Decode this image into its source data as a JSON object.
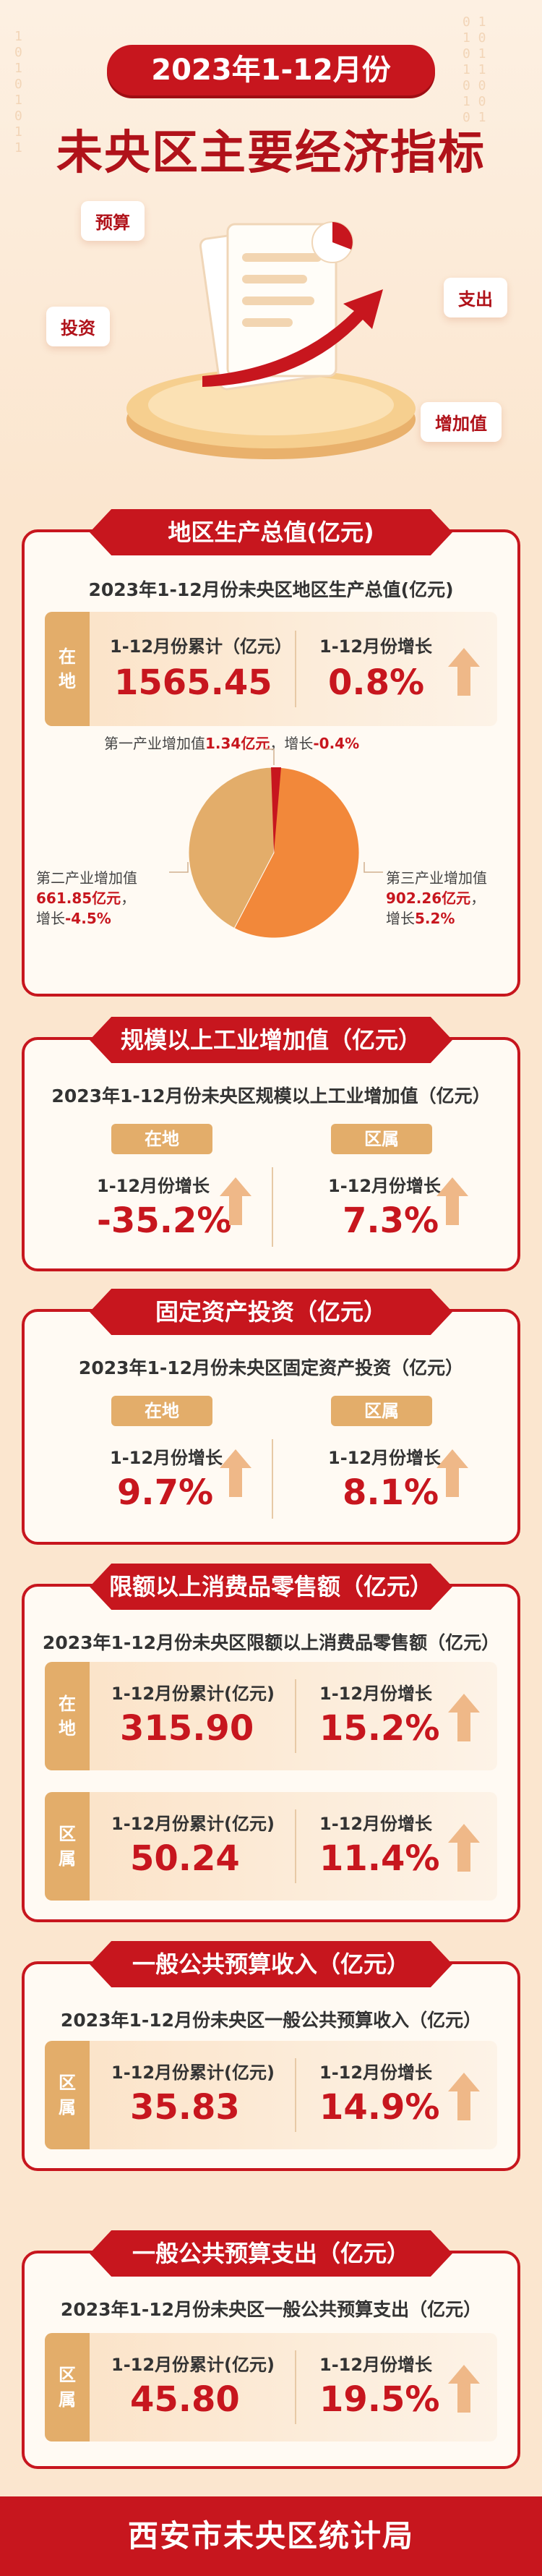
{
  "header": {
    "subtitle": "2023年1-12月份",
    "title": "未央区主要经济指标",
    "tags": {
      "budget": "预算",
      "invest": "投资",
      "expense": "支出",
      "added": "增加值"
    }
  },
  "gdp": {
    "title": "地区生产总值(亿元)",
    "subtitle": "2023年1-12月份未央区地区生产总值(亿元)",
    "side": [
      "在",
      "地"
    ],
    "cum_label": "1-12月份累计（亿元）",
    "cum_value": "1565.45",
    "growth_label": "1-12月份增长",
    "growth_value": "0.8%",
    "primary": {
      "label": "第一产业增加值",
      "value": "1.34亿元",
      "growth_label": "增长",
      "growth": "-0.4%"
    },
    "secondary": {
      "label": "第二产业增加值",
      "value": "661.85亿元",
      "growth_label": "增长",
      "growth": "-4.5%"
    },
    "tertiary": {
      "label": "第三产业增加值",
      "value": "902.26亿元",
      "growth_label": "增长",
      "growth": "5.2%"
    }
  },
  "chart_data": {
    "type": "pie",
    "categories": [
      "第一产业增加值",
      "第二产业增加值",
      "第三产业增加值"
    ],
    "values": [
      1.34,
      661.85,
      902.26
    ],
    "colors": [
      "#c7161e",
      "#e3ad6a",
      "#f2883a"
    ]
  },
  "industry": {
    "title": "规模以上工业增加值（亿元）",
    "subtitle": "2023年1-12月份未央区规模以上工业增加值（亿元）",
    "left_tag": "在地",
    "right_tag": "区属",
    "left_label": "1-12月份增长",
    "left_value": "-35.2%",
    "right_label": "1-12月份增长",
    "right_value": "7.3%"
  },
  "fixed": {
    "title": "固定资产投资（亿元）",
    "subtitle": "2023年1-12月份未央区固定资产投资（亿元）",
    "left_tag": "在地",
    "right_tag": "区属",
    "left_label": "1-12月份增长",
    "left_value": "9.7%",
    "right_label": "1-12月份增长",
    "right_value": "8.1%"
  },
  "retail": {
    "title": "限额以上消费品零售额（亿元）",
    "subtitle": "2023年1-12月份未央区限额以上消费品零售额（亿元）",
    "row1": {
      "side": [
        "在",
        "地"
      ],
      "cum_label": "1-12月份累计(亿元)",
      "cum_value": "315.90",
      "growth_label": "1-12月份增长",
      "growth_value": "15.2%"
    },
    "row2": {
      "side": [
        "区",
        "属"
      ],
      "cum_label": "1-12月份累计(亿元)",
      "cum_value": "50.24",
      "growth_label": "1-12月份增长",
      "growth_value": "11.4%"
    }
  },
  "revenue": {
    "title": "一般公共预算收入（亿元）",
    "subtitle": "2023年1-12月份未央区一般公共预算收入（亿元）",
    "side": [
      "区",
      "属"
    ],
    "cum_label": "1-12月份累计(亿元)",
    "cum_value": "35.83",
    "growth_label": "1-12月份增长",
    "growth_value": "14.9%"
  },
  "expenditure": {
    "title": "一般公共预算支出（亿元）",
    "subtitle": "2023年1-12月份未央区一般公共预算支出（亿元）",
    "side": [
      "区",
      "属"
    ],
    "cum_label": "1-12月份累计(亿元)",
    "cum_value": "45.80",
    "growth_label": "1-12月份增长",
    "growth_value": "19.5%"
  },
  "footer": {
    "org": "西安市未央区统计局"
  }
}
